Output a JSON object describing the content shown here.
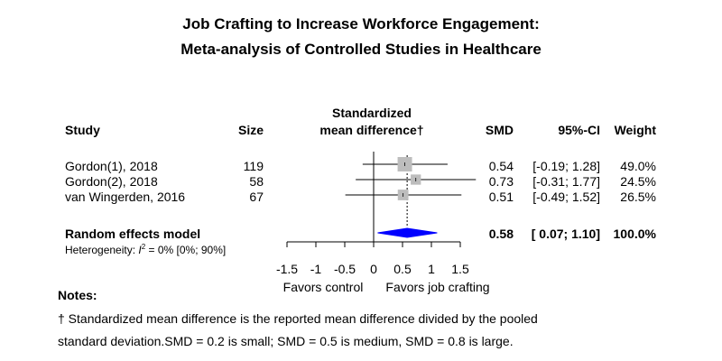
{
  "chart_data": {
    "type": "forest",
    "title_line1": "Job Crafting to Increase Workforce Engagement:",
    "title_line2": "Meta-analysis of Controlled Studies in Healthcare",
    "headers": {
      "study": "Study",
      "size": "Size",
      "effect_line1": "Standardized",
      "effect_line2": "mean difference†",
      "smd": "SMD",
      "ci": "95%-CI",
      "weight": "Weight"
    },
    "studies": [
      {
        "name": "Gordon(1), 2018",
        "size": "119",
        "smd": 0.54,
        "lower": -0.19,
        "upper": 1.28,
        "smd_text": "0.54",
        "ci_text": "[-0.19; 1.28]",
        "weight_text": "49.0%",
        "weight": 49.0
      },
      {
        "name": "Gordon(2), 2018",
        "size": "58",
        "smd": 0.73,
        "lower": -0.31,
        "upper": 1.77,
        "smd_text": "0.73",
        "ci_text": "[-0.31; 1.77]",
        "weight_text": "24.5%",
        "weight": 24.5
      },
      {
        "name": "van Wingerden, 2016",
        "size": "67",
        "smd": 0.51,
        "lower": -0.49,
        "upper": 1.52,
        "smd_text": "0.51",
        "ci_text": "[-0.49; 1.52]",
        "weight_text": "26.5%",
        "weight": 26.5
      }
    ],
    "pooled": {
      "label": "Random effects model",
      "smd": 0.58,
      "lower": 0.07,
      "upper": 1.1,
      "smd_text": "0.58",
      "ci_text": "[ 0.07; 1.10]",
      "weight_text": "100.0%"
    },
    "heterogeneity": {
      "prefix": "Heterogeneity: ",
      "stat": "I",
      "sup": "2",
      "suffix": " = 0% [0%; 90%]"
    },
    "axis": {
      "xlim": [
        -1.5,
        1.5
      ],
      "ticks": [
        -1.5,
        -1,
        -0.5,
        0,
        0.5,
        1,
        1.5
      ],
      "tick_labels": [
        "-1.5",
        "-1",
        "-0.5",
        "0",
        "0.5",
        "1",
        "1.5"
      ],
      "favors_left": "Favors control",
      "favors_right": "Favors job crafting"
    },
    "colors": {
      "pooled_diamond": "#0000ff",
      "study_square": "#bdbdbd",
      "line": "#000000"
    }
  },
  "notes": {
    "heading": "Notes:",
    "line1": "† Standardized mean difference is the reported mean difference divided by the pooled",
    "line2": "standard deviation.SMD = 0.2 is small; SMD = 0.5 is medium, SMD = 0.8 is large."
  }
}
